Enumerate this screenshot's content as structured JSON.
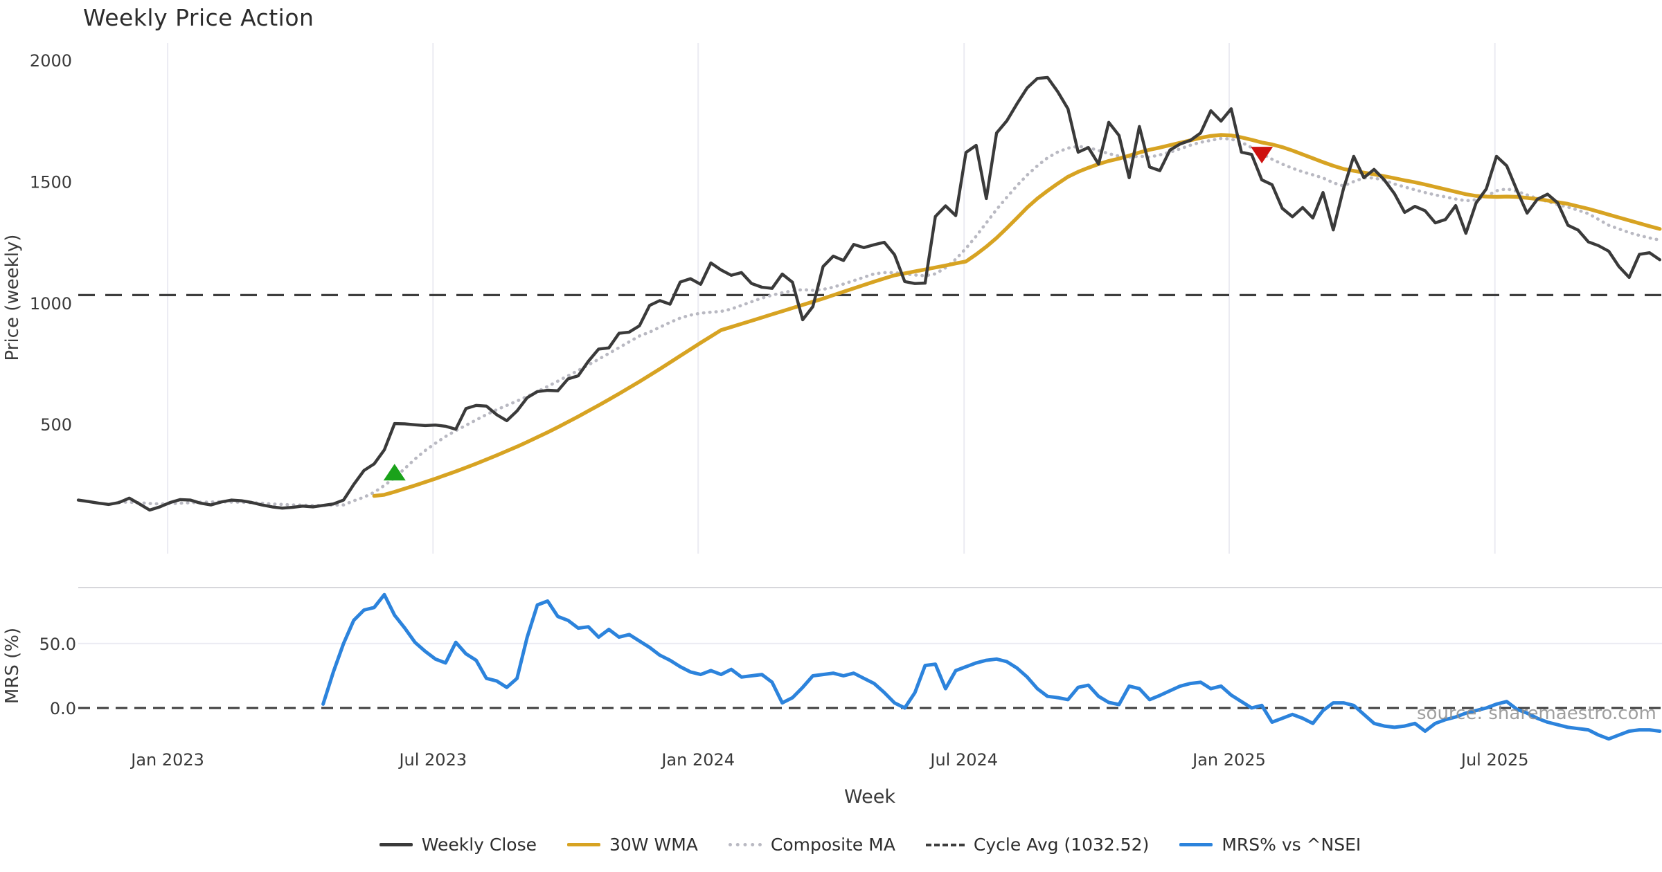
{
  "title": "Weekly Price Action",
  "watermark": "source: sharemaestro.com",
  "axes": {
    "price_label": "Price (weekly)",
    "mrs_label": "MRS (%)",
    "x_label": "Week",
    "price_tick_labels": [
      "2000",
      "1500",
      "1000",
      "500"
    ],
    "price_tick_values": [
      2000,
      1500,
      1000,
      500
    ],
    "mrs_tick_labels": [
      "50.0",
      "0.0"
    ],
    "mrs_tick_values": [
      50,
      0
    ],
    "x_tick_labels": [
      "Jan 2023",
      "Jul 2023",
      "Jan 2024",
      "Jul 2024",
      "Jan 2025",
      "Jul 2025"
    ]
  },
  "legend": {
    "items": [
      {
        "label": "Weekly Close",
        "style": "solid",
        "color": "#3a3a3a"
      },
      {
        "label": "30W WMA",
        "style": "solid",
        "color": "#d7a322"
      },
      {
        "label": "Composite MA",
        "style": "dotted",
        "color": "#b9b9c2"
      },
      {
        "label": "Cycle Avg (1032.52)",
        "style": "dashed",
        "color": "#3d3d3d"
      },
      {
        "label": "MRS% vs ^NSEI",
        "style": "solid",
        "color": "#2c83dc"
      }
    ]
  },
  "colors": {
    "weekly_close": "#3a3a3a",
    "wma": "#d7a322",
    "composite": "#b9b9c2",
    "cycle_avg": "#3d3d3d",
    "mrs": "#2c83dc",
    "buy_marker": "#1aa21a",
    "sell_marker": "#ce1210",
    "gridline": "#ebebf2",
    "separator": "#d7d7db",
    "tick_text": "#3a3a3a"
  },
  "chart_data": {
    "type": "line",
    "title": "Weekly Price Action",
    "x_unit": "week index (weekly bars, ~3 years span)",
    "x_tick_weeks": [
      8.76,
      34.77,
      60.76,
      86.82,
      112.8,
      138.84
    ],
    "panels": [
      {
        "name": "price",
        "ylabel": "Price (weekly)",
        "yticks": [
          2000,
          1500,
          1000,
          500
        ],
        "cycle_avg": 1032.52,
        "grid": "vertical-only",
        "series": [
          {
            "name": "Weekly Close",
            "start_week": 0,
            "values": [
              188,
              182,
              175,
              170,
              178,
              196,
              172,
              147,
              160,
              178,
              190,
              188,
              175,
              168,
              180,
              188,
              185,
              178,
              168,
              160,
              155,
              158,
              163,
              160,
              166,
              172,
              188,
              252,
              310,
              337,
              395,
              503,
              502,
              498,
              495,
              497,
              492,
              480,
              565,
              578,
              575,
              540,
              515,
              555,
              610,
              635,
              640,
              638,
              687,
              700,
              760,
              810,
              815,
              875,
              880,
              906,
              990,
              1010,
              995,
              1086,
              1100,
              1077,
              1165,
              1136,
              1114,
              1125,
              1080,
              1065,
              1060,
              1119,
              1085,
              931,
              985,
              1150,
              1193,
              1175,
              1241,
              1228,
              1240,
              1250,
              1199,
              1088,
              1080,
              1082,
              1356,
              1400,
              1360,
              1620,
              1649,
              1430,
              1700,
              1750,
              1820,
              1886,
              1925,
              1929,
              1870,
              1800,
              1621,
              1640,
              1572,
              1744,
              1690,
              1516,
              1727,
              1560,
              1545,
              1630,
              1655,
              1670,
              1700,
              1792,
              1749,
              1800,
              1621,
              1612,
              1507,
              1487,
              1390,
              1355,
              1393,
              1350,
              1455,
              1301,
              1470,
              1604,
              1516,
              1550,
              1507,
              1450,
              1373,
              1398,
              1380,
              1330,
              1344,
              1401,
              1287,
              1412,
              1470,
              1604,
              1565,
              1464,
              1370,
              1427,
              1448,
              1412,
              1320,
              1300,
              1252,
              1236,
              1213,
              1150,
              1105,
              1200,
              1207,
              1178
            ]
          },
          {
            "name": "30W WMA",
            "start_week": 29,
            "values": [
              205,
              210,
              222,
              235,
              248,
              262,
              276,
              291,
              306,
              322,
              338,
              355,
              372,
              390,
              408,
              427,
              447,
              467,
              488,
              510,
              532,
              555,
              578,
              602,
              626,
              651,
              676,
              702,
              728,
              755,
              782,
              809,
              836,
              862,
              888,
              901,
              914,
              927,
              940,
              953,
              966,
              979,
              992,
              1005,
              1018,
              1032,
              1046,
              1060,
              1074,
              1088,
              1101,
              1114,
              1122,
              1130,
              1138,
              1146,
              1154,
              1163,
              1171,
              1200,
              1232,
              1268,
              1308,
              1350,
              1393,
              1430,
              1462,
              1492,
              1520,
              1540,
              1557,
              1572,
              1585,
              1595,
              1607,
              1620,
              1631,
              1640,
              1650,
              1660,
              1670,
              1680,
              1688,
              1692,
              1690,
              1682,
              1672,
              1661,
              1653,
              1642,
              1628,
              1612,
              1596,
              1580,
              1565,
              1552,
              1544,
              1537,
              1530,
              1522,
              1514,
              1505,
              1497,
              1488,
              1478,
              1468,
              1458,
              1448,
              1441,
              1438,
              1437,
              1438,
              1437,
              1433,
              1428,
              1422,
              1415,
              1408,
              1398,
              1388,
              1376,
              1364,
              1352,
              1340,
              1328,
              1316,
              1305
            ]
          },
          {
            "name": "Composite MA",
            "start_week": 4,
            "values": [
              180,
              179,
              177,
              174,
              172,
              173,
              175,
              177,
              179,
              180,
              181,
              180,
              179,
              177,
              175,
              172,
              170,
              168,
              167,
              166,
              166,
              167,
              168,
              185,
              200,
              220,
              248,
              280,
              318,
              357,
              392,
              422,
              450,
              474,
              496,
              518,
              540,
              560,
              578,
              596,
              615,
              635,
              656,
              678,
              700,
              722,
              745,
              768,
              792,
              816,
              840,
              864,
              880,
              900,
              920,
              938,
              950,
              958,
              962,
              965,
              975,
              990,
              1005,
              1020,
              1032,
              1042,
              1050,
              1055,
              1052,
              1056,
              1065,
              1078,
              1092,
              1106,
              1120,
              1125,
              1125,
              1120,
              1115,
              1112,
              1120,
              1145,
              1180,
              1225,
              1275,
              1330,
              1385,
              1435,
              1483,
              1527,
              1565,
              1598,
              1622,
              1638,
              1645,
              1640,
              1628,
              1615,
              1605,
              1601,
              1605,
              1601,
              1610,
              1621,
              1635,
              1650,
              1662,
              1670,
              1678,
              1675,
              1662,
              1640,
              1615,
              1592,
              1572,
              1555,
              1540,
              1528,
              1515,
              1495,
              1482,
              1500,
              1515,
              1515,
              1505,
              1490,
              1478,
              1466,
              1455,
              1445,
              1437,
              1428,
              1421,
              1425,
              1440,
              1462,
              1470,
              1460,
              1445,
              1430,
              1418,
              1405,
              1395,
              1382,
              1368,
              1344,
              1320,
              1305,
              1290,
              1278,
              1268,
              1259
            ]
          }
        ],
        "markers": [
          {
            "type": "triangle-up",
            "name": "buy-signal",
            "week": 31,
            "value": 300,
            "color": "#1aa21a"
          },
          {
            "type": "triangle-down",
            "name": "sell-signal",
            "week": 116,
            "value": 1612,
            "color": "#ce1210"
          }
        ]
      },
      {
        "name": "mrs",
        "ylabel": "MRS (%)",
        "yticks": [
          50.0,
          0.0
        ],
        "zero_line_dashed": true,
        "series": [
          {
            "name": "MRS% vs ^NSEI",
            "start_week": 24,
            "values": [
              3,
              28,
              50,
              68,
              76,
              78,
              88,
              72,
              62,
              51,
              44,
              38,
              35,
              51,
              42,
              37,
              23,
              21,
              16,
              23,
              55,
              80,
              83,
              71,
              68,
              62,
              63,
              55,
              61,
              55,
              57,
              52,
              47,
              41,
              37,
              32,
              28,
              26,
              29,
              26,
              30,
              24,
              25,
              26,
              20,
              4,
              8,
              16,
              25,
              26,
              27,
              25,
              27,
              23,
              19,
              12,
              4,
              0,
              12,
              33,
              34,
              15,
              29,
              32,
              35,
              37,
              38,
              36,
              31,
              24,
              15,
              9,
              8,
              6.5,
              16,
              17.7,
              9,
              4.3,
              2.7,
              17,
              15,
              6.5,
              9.7,
              13.4,
              17,
              19,
              20,
              15,
              17,
              10,
              5,
              0,
              2,
              -11,
              -8,
              -5,
              -8,
              -12,
              -2,
              4,
              4,
              2,
              -5,
              -12,
              -14,
              -15,
              -14,
              -12,
              -18,
              -12,
              -9,
              -7,
              -4,
              -2,
              0,
              3,
              5,
              -1,
              -4,
              -8,
              -11,
              -13,
              -15,
              -16,
              -17,
              -21,
              -24,
              -21,
              -18,
              -17,
              -17,
              -18
            ]
          }
        ]
      }
    ]
  }
}
